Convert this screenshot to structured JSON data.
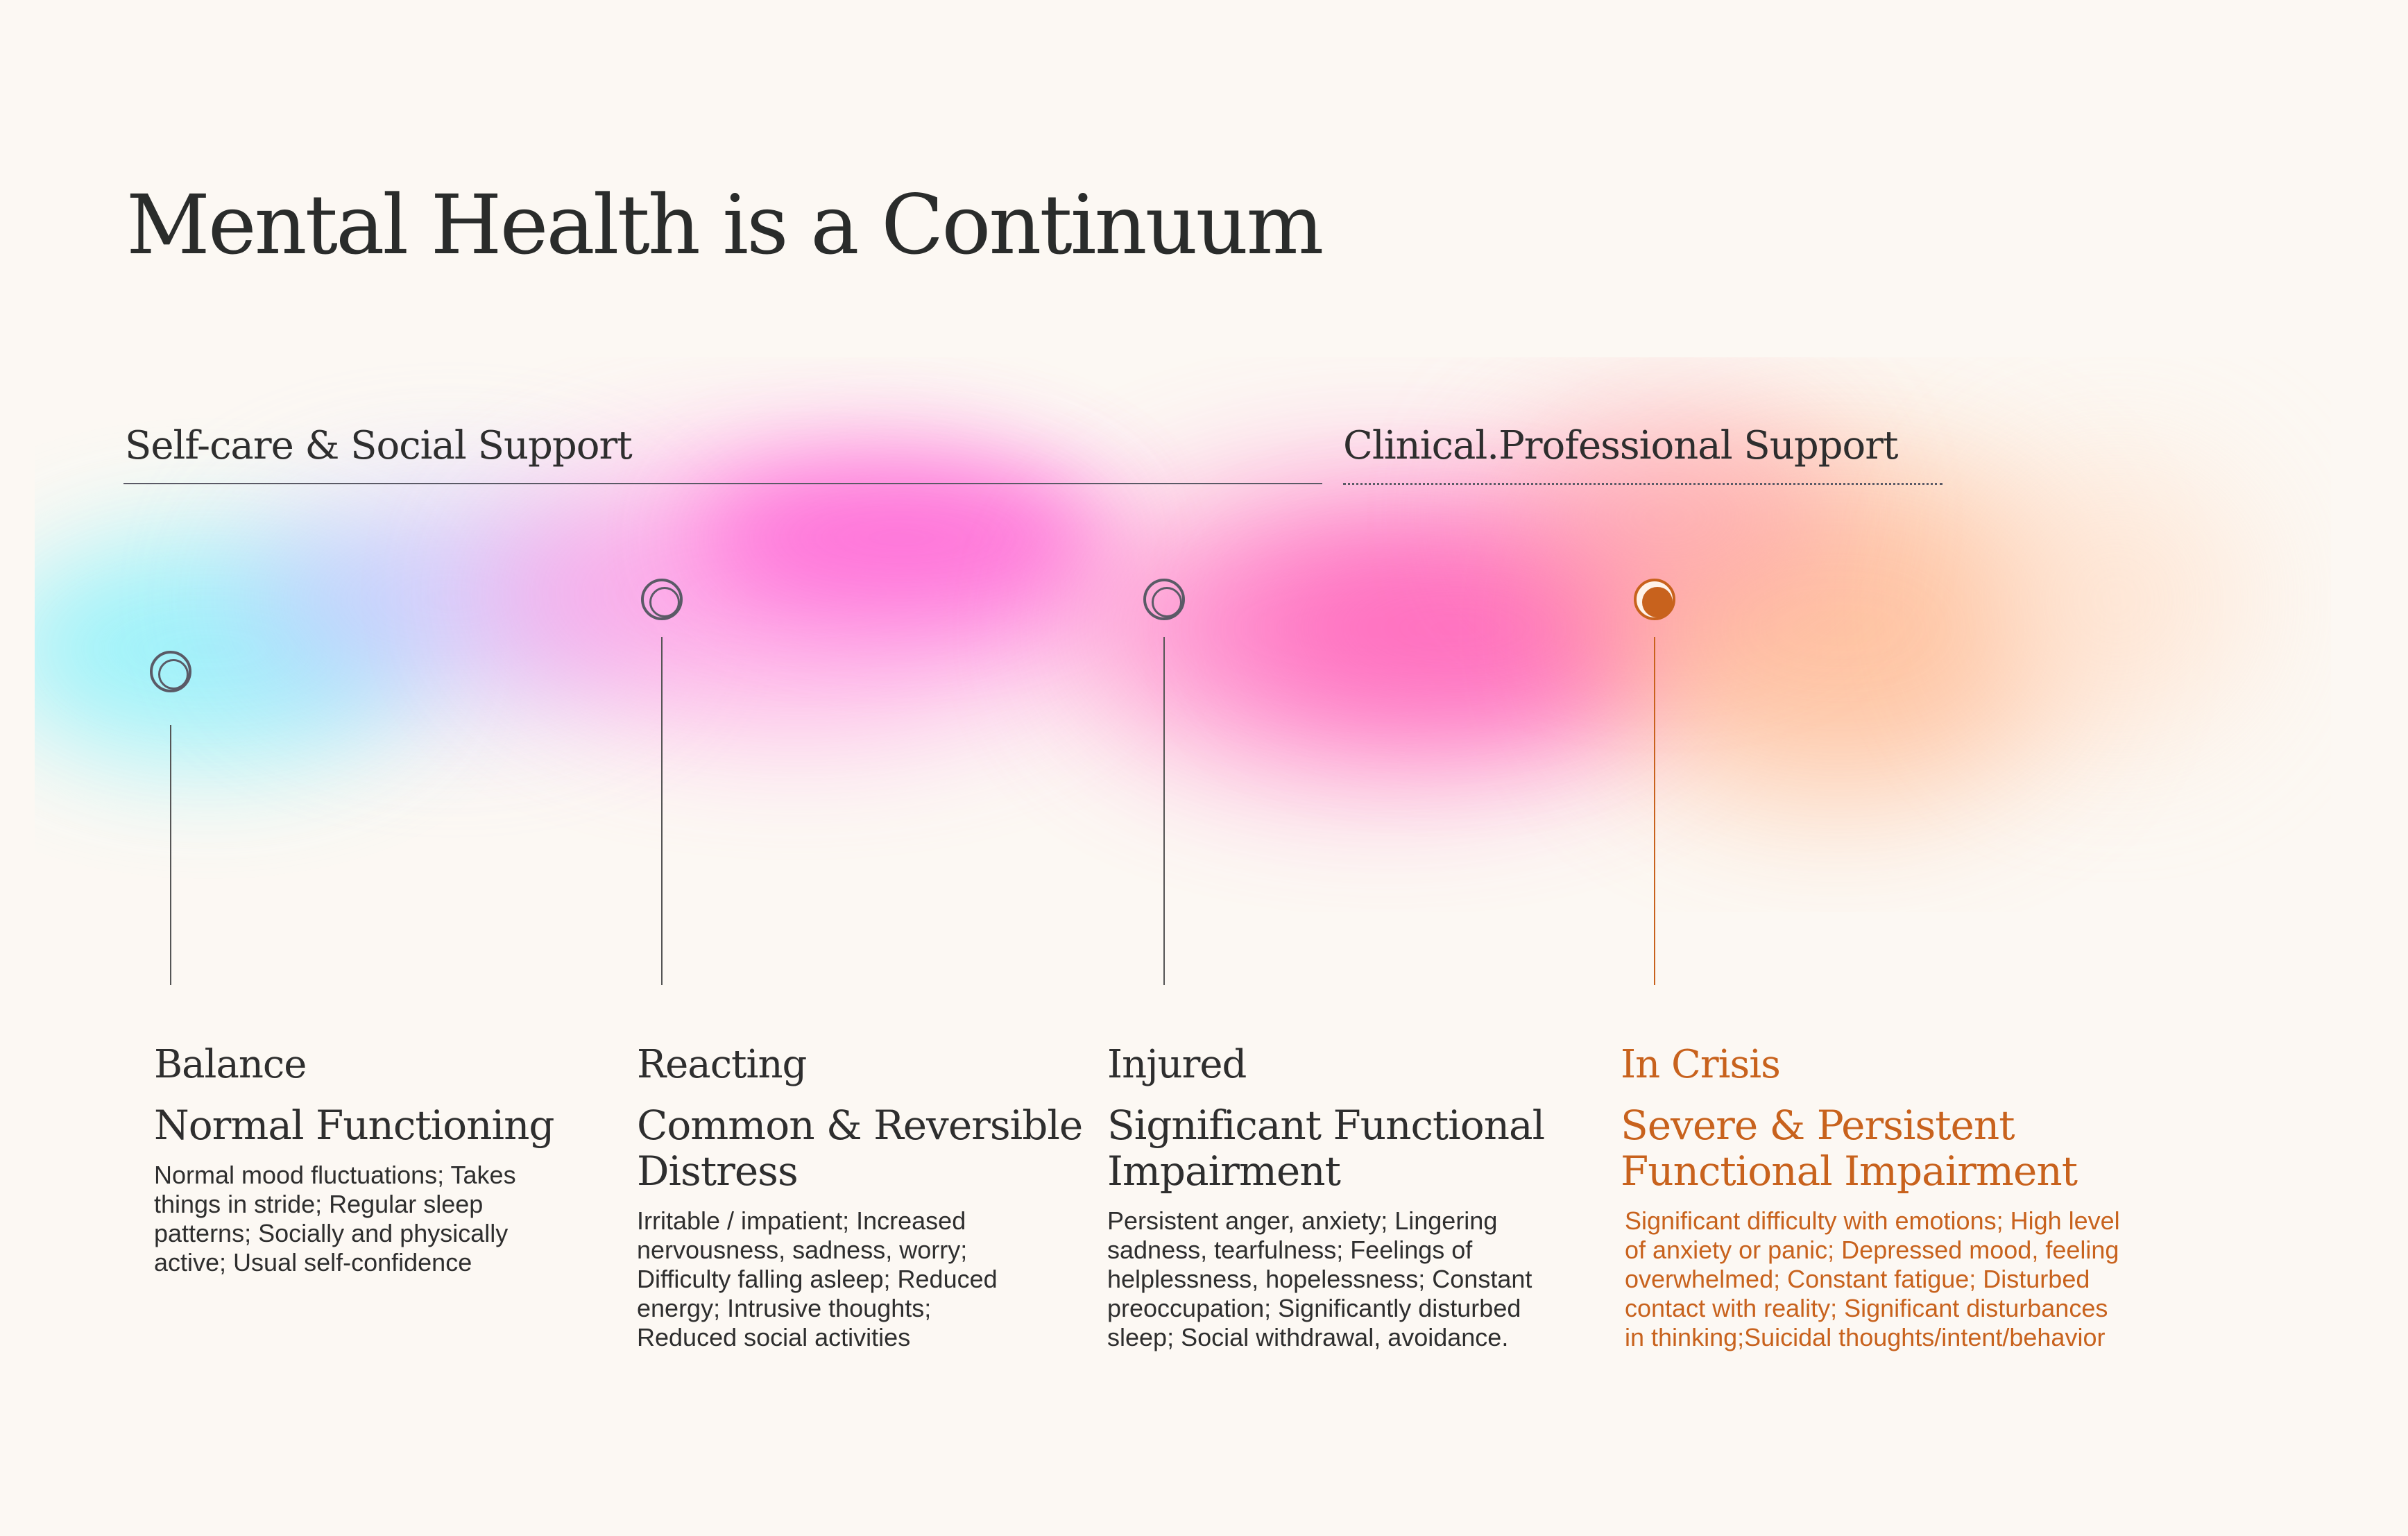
{
  "title": "Mental Health is a Continuum",
  "support": {
    "self_care": "Self-care & Social Support",
    "clinical": "Clinical.Professional Support"
  },
  "colors": {
    "background": "#fcf8f3",
    "text": "#2e2e2e",
    "crisis_accent": "#c8621d",
    "gradient_cyan": "#7ef0fb",
    "gradient_pink": "#ff6fd0",
    "gradient_orange": "#ffb088"
  },
  "stages": [
    {
      "name": "Balance",
      "subtitle": [
        "Normal Functioning"
      ],
      "description": [
        "Normal mood fluctuations; Takes",
        "things in stride; Regular sleep",
        "patterns; Socially and physically",
        "active; Usual self-confidence"
      ]
    },
    {
      "name": "Reacting",
      "subtitle": [
        "Common & Reversible",
        "Distress"
      ],
      "description": [
        "Irritable / impatient; Increased",
        "nervousness, sadness, worry;",
        "Difficulty falling asleep; Reduced",
        "energy; Intrusive thoughts;",
        "Reduced social activities"
      ]
    },
    {
      "name": "Injured",
      "subtitle": [
        "Significant Functional",
        "Impairment"
      ],
      "description": [
        "Persistent anger, anxiety; Lingering",
        "sadness, tearfulness; Feelings of",
        "helplessness, hopelessness; Constant",
        "preoccupation; Significantly disturbed",
        "sleep; Social withdrawal, avoidance."
      ]
    },
    {
      "name": "In Crisis",
      "subtitle": [
        "Severe & Persistent",
        "Functional Impairment"
      ],
      "description": [
        "Significant difficulty with emotions; High level",
        "of anxiety or panic; Depressed mood, feeling",
        "overwhelmed; Constant fatigue; Disturbed",
        "contact with reality; Significant disturbances",
        "in thinking;Suicidal thoughts/intent/behavior"
      ]
    }
  ]
}
